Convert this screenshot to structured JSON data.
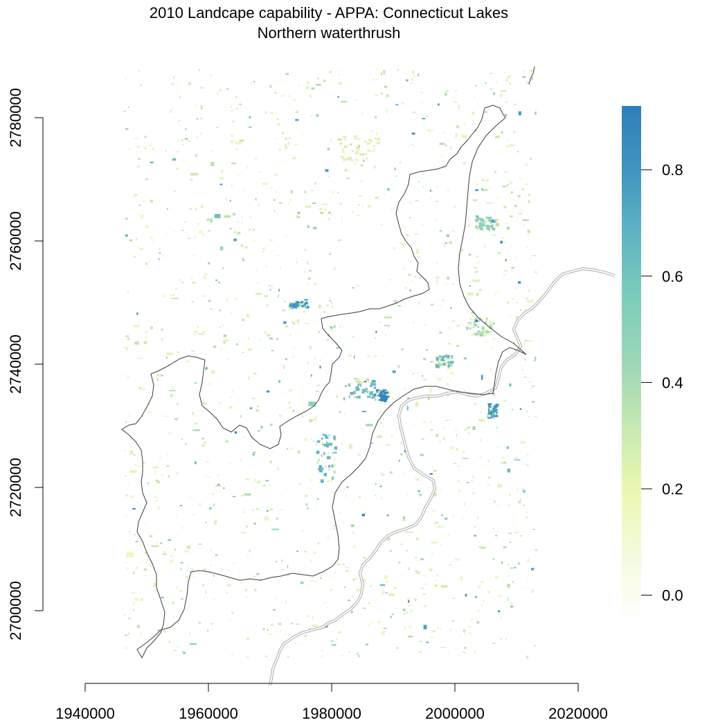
{
  "title": "2010 Landcape capability - APPA: Connecticut Lakes",
  "subtitle": "Northern waterthrush",
  "map": {
    "x_ticks": [
      1940000,
      1960000,
      1980000,
      2000000,
      2020000
    ],
    "x_tick_labels": [
      "1940000",
      "1960000",
      "1980000",
      "2000000",
      "2020000"
    ],
    "y_ticks": [
      2700000,
      2720000,
      2740000,
      2760000,
      2780000
    ],
    "y_tick_labels": [
      "2700000",
      "2720000",
      "2740000",
      "2760000",
      "2780000"
    ],
    "x_range": [
      1940000,
      2020000
    ],
    "y_range": [
      2700000,
      2780000
    ]
  },
  "legend": {
    "values": [
      0.0,
      0.2,
      0.4,
      0.6,
      0.8
    ],
    "labels": [
      "0.0",
      "0.2",
      "0.4",
      "0.6",
      "0.8"
    ],
    "min": -0.05,
    "max": 0.92,
    "colors": [
      "#ffffff",
      "#f4fadf",
      "#ecf8b2",
      "#c8e9b1",
      "#9ed7b8",
      "#7ecdbb",
      "#5fb5c2",
      "#3f96c0",
      "#2f7fb8"
    ]
  },
  "colors": {
    "boundary": "#3a3a3a",
    "state_line": "#9a9a9a"
  }
}
